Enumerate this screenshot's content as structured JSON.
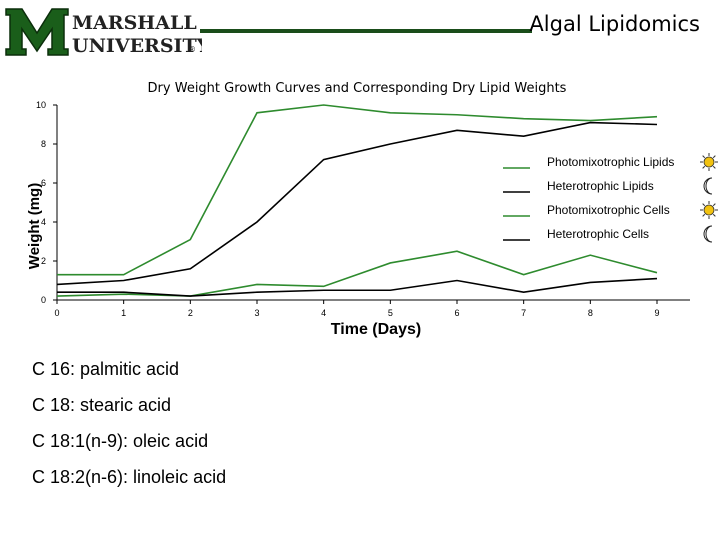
{
  "header": {
    "logo_line1": "MARSHALL",
    "logo_line2": "UNIVERSITY.",
    "logo_mark": "®",
    "title": "Algal Lipidomics",
    "colors": {
      "brand_green": "#1a5e1a",
      "rule": "#1a4d1a"
    }
  },
  "chart_data": {
    "type": "line",
    "title": "Dry Weight Growth Curves and Corresponding Dry Lipid Weights",
    "xlabel": "Time (Days)",
    "ylabel": "Weight (mg)",
    "xlim": [
      0,
      9
    ],
    "ylim": [
      0,
      10
    ],
    "x_ticks": [
      "0",
      "1",
      "2",
      "3",
      "4",
      "5",
      "6",
      "7",
      "8",
      "9"
    ],
    "y_ticks": [
      "0",
      "2",
      "4",
      "6",
      "8",
      "10"
    ],
    "grid": false,
    "legend_position": "right",
    "x": [
      0,
      1,
      2,
      3,
      4,
      5,
      6,
      7,
      8,
      9
    ],
    "series": [
      {
        "name": "Photomixotrophic Lipids",
        "color": "#2e8b2e",
        "icon": "sun-icon",
        "values": [
          0.2,
          0.3,
          0.2,
          0.8,
          0.7,
          1.9,
          2.5,
          1.3,
          2.3,
          1.4
        ]
      },
      {
        "name": "Heterotrophic Lipids",
        "color": "#000000",
        "icon": "moon-icon",
        "values": [
          0.4,
          0.4,
          0.2,
          0.4,
          0.5,
          0.5,
          1.0,
          0.4,
          0.9,
          1.1
        ]
      },
      {
        "name": "Photomixotrophic Cells",
        "color": "#2e8b2e",
        "icon": "sun-icon",
        "values": [
          1.3,
          1.3,
          3.1,
          9.6,
          10.0,
          9.6,
          9.5,
          9.3,
          9.2,
          9.4
        ]
      },
      {
        "name": "Heterotrophic Cells",
        "color": "#000000",
        "icon": "moon-icon",
        "values": [
          0.8,
          1.0,
          1.6,
          4.0,
          7.2,
          8.0,
          8.7,
          8.4,
          9.1,
          9.0
        ]
      }
    ]
  },
  "notes": [
    "C 16: palmitic acid",
    "C 18: stearic acid",
    "C 18:1(n-9): oleic acid",
    "C 18:2(n-6): linoleic acid"
  ]
}
